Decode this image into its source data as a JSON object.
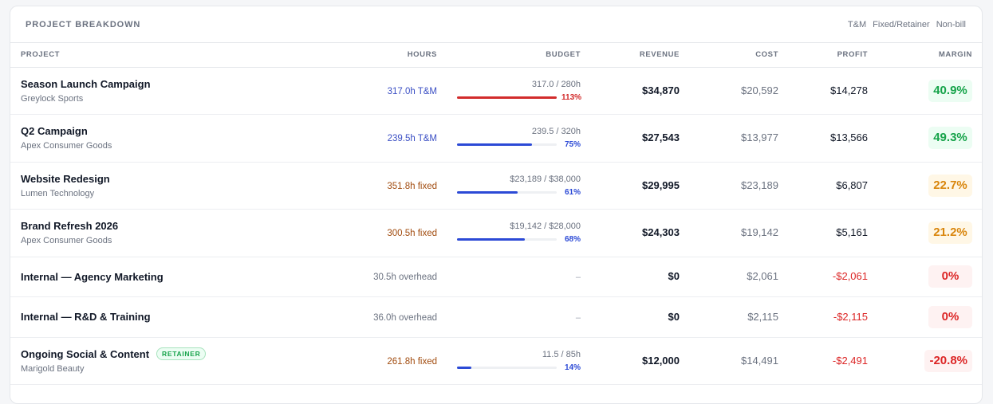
{
  "header": {
    "title": "PROJECT BREAKDOWN",
    "legend": [
      "T&M",
      "Fixed/Retainer",
      "Non-bill"
    ]
  },
  "columns": {
    "project": "PROJECT",
    "hours": "HOURS",
    "budget": "BUDGET",
    "revenue": "REVENUE",
    "cost": "COST",
    "profit": "PROFIT",
    "margin": "MARGIN"
  },
  "rows": [
    {
      "name": "Season Launch Campaign",
      "client": "Greylock Sports",
      "badge": "",
      "hours": "317.0h T&M",
      "hours_type": "tm",
      "budget_label": "317.0 / 280h",
      "budget_pct_label": "113%",
      "budget_fraction": 1.13,
      "revenue": "$34,870",
      "cost": "$20,592",
      "profit": "$14,278",
      "profit_negative": false,
      "margin": "40.9%",
      "margin_level": "good"
    },
    {
      "name": "Q2 Campaign",
      "client": "Apex Consumer Goods",
      "badge": "",
      "hours": "239.5h T&M",
      "hours_type": "tm",
      "budget_label": "239.5 / 320h",
      "budget_pct_label": "75%",
      "budget_fraction": 0.75,
      "revenue": "$27,543",
      "cost": "$13,977",
      "profit": "$13,566",
      "profit_negative": false,
      "margin": "49.3%",
      "margin_level": "good"
    },
    {
      "name": "Website Redesign",
      "client": "Lumen Technology",
      "badge": "",
      "hours": "351.8h fixed",
      "hours_type": "fixed",
      "budget_label": "$23,189 / $38,000",
      "budget_pct_label": "61%",
      "budget_fraction": 0.61,
      "revenue": "$29,995",
      "cost": "$23,189",
      "profit": "$6,807",
      "profit_negative": false,
      "margin": "22.7%",
      "margin_level": "warn"
    },
    {
      "name": "Brand Refresh 2026",
      "client": "Apex Consumer Goods",
      "badge": "",
      "hours": "300.5h fixed",
      "hours_type": "fixed",
      "budget_label": "$19,142 / $28,000",
      "budget_pct_label": "68%",
      "budget_fraction": 0.68,
      "revenue": "$24,303",
      "cost": "$19,142",
      "profit": "$5,161",
      "profit_negative": false,
      "margin": "21.2%",
      "margin_level": "warn"
    },
    {
      "name": "Internal — Agency Marketing",
      "client": "",
      "badge": "",
      "hours": "30.5h overhead",
      "hours_type": "overhead",
      "budget_label": "–",
      "budget_pct_label": "",
      "budget_fraction": null,
      "revenue": "$0",
      "cost": "$2,061",
      "profit": "-$2,061",
      "profit_negative": true,
      "margin": "0%",
      "margin_level": "bad"
    },
    {
      "name": "Internal — R&D & Training",
      "client": "",
      "badge": "",
      "hours": "36.0h overhead",
      "hours_type": "overhead",
      "budget_label": "–",
      "budget_pct_label": "",
      "budget_fraction": null,
      "revenue": "$0",
      "cost": "$2,115",
      "profit": "-$2,115",
      "profit_negative": true,
      "margin": "0%",
      "margin_level": "bad"
    },
    {
      "name": "Ongoing Social & Content",
      "client": "Marigold Beauty",
      "badge": "RETAINER",
      "hours": "261.8h fixed",
      "hours_type": "fixed",
      "budget_label": "11.5 / 85h",
      "budget_pct_label": "14%",
      "budget_fraction": 0.14,
      "revenue": "$12,000",
      "cost": "$14,491",
      "profit": "-$2,491",
      "profit_negative": true,
      "margin": "-20.8%",
      "margin_level": "bad"
    }
  ]
}
